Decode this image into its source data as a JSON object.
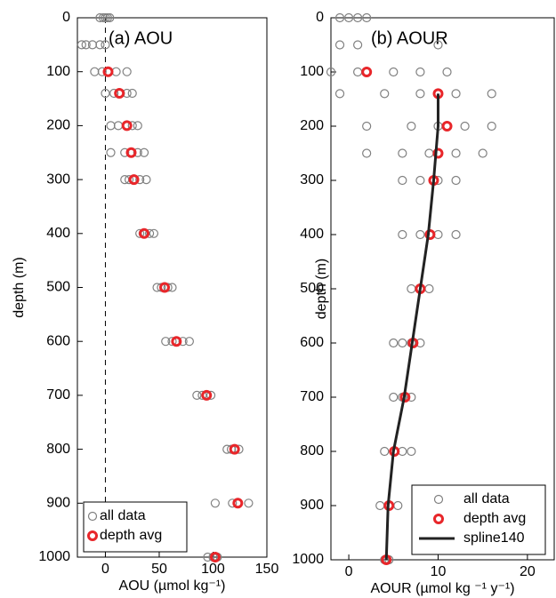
{
  "chart_data": [
    {
      "type": "scatter",
      "title": "(a) AOU",
      "xlabel": "AOU (µmol kg⁻¹)",
      "ylabel": "depth (m)",
      "xlim": [
        -26,
        150
      ],
      "ylim": [
        0,
        1000
      ],
      "y_inverted": true,
      "xticks": [
        0,
        50,
        100,
        150
      ],
      "yticks": [
        0,
        100,
        200,
        300,
        400,
        500,
        600,
        700,
        800,
        900,
        1000
      ],
      "vline": 0,
      "legend": "lower left",
      "series": [
        {
          "name": "all data",
          "color": "#808080",
          "marker": "open-circle",
          "x": [
            -5,
            -2,
            0,
            2,
            4,
            -22,
            -18,
            -12,
            -5,
            0,
            -10,
            -3,
            3,
            10,
            20,
            0,
            8,
            14,
            20,
            25,
            5,
            12,
            20,
            25,
            30,
            5,
            18,
            24,
            30,
            36,
            18,
            22,
            27,
            32,
            38,
            32,
            35,
            37,
            41,
            45,
            48,
            52,
            55,
            58,
            62,
            56,
            62,
            66,
            72,
            78,
            85,
            90,
            94,
            98,
            113,
            117,
            120,
            124,
            102,
            118,
            123,
            133,
            95,
            100,
            104
          ],
          "y": [
            0,
            0,
            0,
            0,
            0,
            50,
            50,
            50,
            50,
            50,
            100,
            100,
            100,
            100,
            100,
            140,
            140,
            140,
            140,
            140,
            200,
            200,
            200,
            200,
            200,
            250,
            250,
            250,
            250,
            250,
            300,
            300,
            300,
            300,
            300,
            400,
            400,
            400,
            400,
            400,
            500,
            500,
            500,
            500,
            500,
            600,
            600,
            600,
            600,
            600,
            700,
            700,
            700,
            700,
            800,
            800,
            800,
            800,
            900,
            900,
            900,
            900,
            1000,
            1000,
            1000
          ]
        },
        {
          "name": "depth avg",
          "color": "#e8262a",
          "marker": "thick-circle",
          "x": [
            2.5,
            13,
            20,
            24,
            26.5,
            36,
            55,
            66,
            94,
            120,
            123,
            102
          ],
          "y": [
            100,
            140,
            200,
            250,
            300,
            400,
            500,
            600,
            700,
            800,
            900,
            1000
          ]
        }
      ]
    },
    {
      "type": "scatter",
      "title": "(b) AOUR",
      "xlabel": "AOUR (µmol kg ⁻¹ y⁻¹)",
      "ylabel": "depth (m)",
      "xlim": [
        -2,
        23
      ],
      "ylim": [
        0,
        1000
      ],
      "y_inverted": true,
      "xticks": [
        0,
        10,
        20
      ],
      "yticks": [
        0,
        100,
        200,
        300,
        400,
        500,
        600,
        700,
        800,
        900,
        1000
      ],
      "legend": "lower right",
      "series": [
        {
          "name": "all data",
          "color": "#808080",
          "marker": "open-circle",
          "x": [
            -1,
            0,
            1,
            2,
            -1,
            1,
            10,
            -2,
            1,
            5,
            8,
            11,
            -1,
            4,
            8,
            12,
            16,
            2,
            7,
            10,
            13,
            16,
            2,
            6,
            9,
            12,
            15,
            6,
            8,
            10,
            12,
            6,
            8,
            9,
            10,
            12,
            7,
            8,
            9,
            5,
            6,
            7,
            8,
            5,
            6,
            7,
            4,
            5,
            6,
            7,
            3.5,
            4.5,
            5.5,
            4,
            4.5
          ],
          "y": [
            0,
            0,
            0,
            0,
            50,
            50,
            50,
            100,
            100,
            100,
            100,
            100,
            140,
            140,
            140,
            140,
            140,
            200,
            200,
            200,
            200,
            200,
            250,
            250,
            250,
            250,
            250,
            300,
            300,
            300,
            300,
            400,
            400,
            400,
            400,
            400,
            500,
            500,
            500,
            600,
            600,
            600,
            600,
            700,
            700,
            700,
            800,
            800,
            800,
            800,
            900,
            900,
            900,
            1000,
            1000
          ]
        },
        {
          "name": "depth avg",
          "color": "#e8262a",
          "marker": "thick-circle",
          "x": [
            2.0,
            10,
            11,
            10,
            9.5,
            9.1,
            8.0,
            7.2,
            6.3,
            5.1,
            4.5,
            4.2
          ],
          "y": [
            100,
            140,
            200,
            250,
            300,
            400,
            500,
            600,
            700,
            800,
            900,
            1000
          ]
        },
        {
          "name": "spline140",
          "color": "#222222",
          "marker": "line",
          "x": [
            10,
            10,
            9.5,
            8.9,
            8.0,
            7.1,
            6.2,
            5.0,
            4.4,
            4.2
          ],
          "y": [
            140,
            200,
            300,
            400,
            500,
            600,
            700,
            800,
            900,
            1000
          ]
        }
      ]
    }
  ]
}
